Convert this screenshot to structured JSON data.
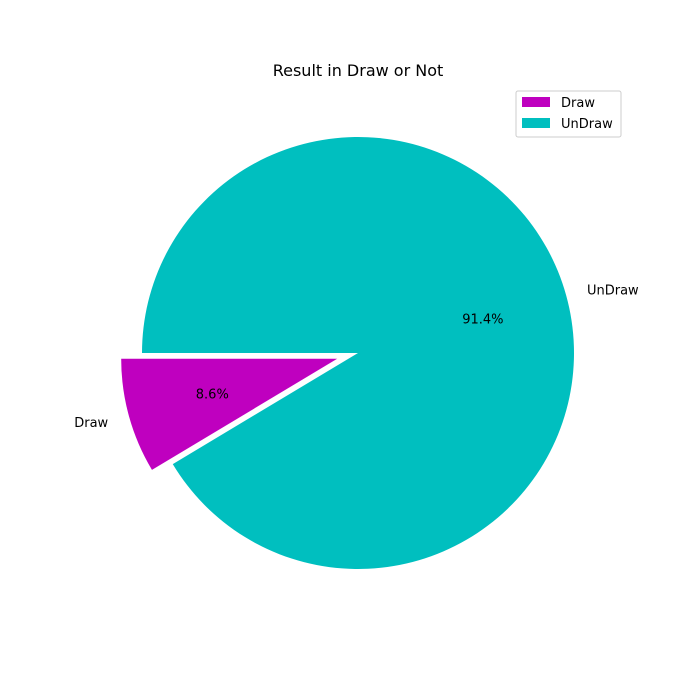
{
  "chart_data": {
    "type": "pie",
    "title": "Result in Draw or Not",
    "slices": [
      {
        "label": "Draw",
        "value": 8.6,
        "pct_label": "8.6%",
        "color": "#bf00bf",
        "exploded": true
      },
      {
        "label": "UnDraw",
        "value": 91.4,
        "pct_label": "91.4%",
        "color": "#00bfbf",
        "exploded": false
      }
    ],
    "legend": {
      "position": "top-right",
      "entries": [
        "Draw",
        "UnDraw"
      ]
    }
  }
}
